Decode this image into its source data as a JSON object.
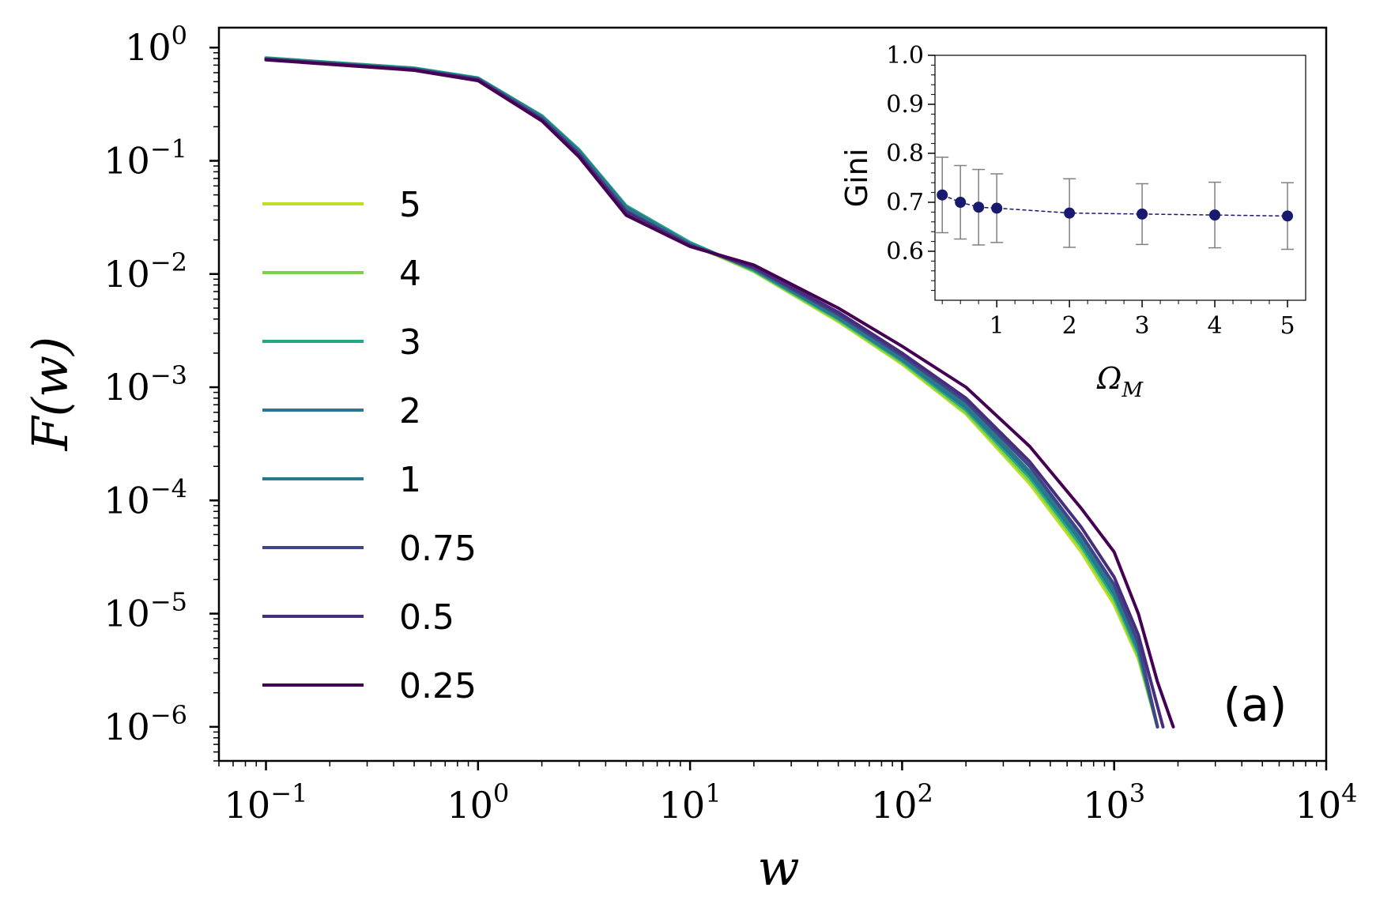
{
  "chart_data": [
    {
      "type": "line",
      "panel_label": "(a)",
      "xlabel": "w",
      "ylabel": "F(w)",
      "xscale": "log",
      "yscale": "log",
      "xlim": [
        0.06,
        10000
      ],
      "ylim": [
        5e-07,
        1.5
      ],
      "x_ticks": [
        {
          "value": 0.1,
          "base": "10",
          "exp": "−1"
        },
        {
          "value": 1,
          "base": "10",
          "exp": "0"
        },
        {
          "value": 10,
          "base": "10",
          "exp": "1"
        },
        {
          "value": 100,
          "base": "10",
          "exp": "2"
        },
        {
          "value": 1000,
          "base": "10",
          "exp": "3"
        },
        {
          "value": 10000,
          "base": "10",
          "exp": "4"
        }
      ],
      "y_ticks": [
        {
          "value": 1,
          "base": "10",
          "exp": "0"
        },
        {
          "value": 0.1,
          "base": "10",
          "exp": "−1"
        },
        {
          "value": 0.01,
          "base": "10",
          "exp": "−2"
        },
        {
          "value": 0.001,
          "base": "10",
          "exp": "−3"
        },
        {
          "value": 0.0001,
          "base": "10",
          "exp": "−4"
        },
        {
          "value": 1e-05,
          "base": "10",
          "exp": "−5"
        },
        {
          "value": 1e-06,
          "base": "10",
          "exp": "−6"
        }
      ],
      "legend_position": "left",
      "series": [
        {
          "name": "5",
          "color": "#bddf26",
          "points": [
            [
              0.1,
              0.8
            ],
            [
              0.5,
              0.65
            ],
            [
              1,
              0.53
            ],
            [
              2,
              0.245
            ],
            [
              3,
              0.12
            ],
            [
              5,
              0.038
            ],
            [
              10,
              0.0185
            ],
            [
              20,
              0.0105
            ],
            [
              50,
              0.0038
            ],
            [
              100,
              0.0016
            ],
            [
              200,
              0.00058
            ],
            [
              400,
              0.00014
            ],
            [
              700,
              3.5e-05
            ],
            [
              1000,
              1.2e-05
            ],
            [
              1300,
              4e-06
            ],
            [
              1600,
              1e-06
            ]
          ]
        },
        {
          "name": "4",
          "color": "#7ad151",
          "points": [
            [
              0.1,
              0.81
            ],
            [
              0.5,
              0.66
            ],
            [
              1,
              0.535
            ],
            [
              2,
              0.25
            ],
            [
              3,
              0.123
            ],
            [
              5,
              0.039
            ],
            [
              10,
              0.0187
            ],
            [
              20,
              0.0106
            ],
            [
              50,
              0.0039
            ],
            [
              100,
              0.00165
            ],
            [
              200,
              0.0006
            ],
            [
              400,
              0.00015
            ],
            [
              700,
              3.8e-05
            ],
            [
              1000,
              1.3e-05
            ],
            [
              1300,
              4.2e-06
            ],
            [
              1600,
              1e-06
            ]
          ]
        },
        {
          "name": "3",
          "color": "#22a884",
          "points": [
            [
              0.1,
              0.81
            ],
            [
              0.5,
              0.66
            ],
            [
              1,
              0.54
            ],
            [
              2,
              0.25
            ],
            [
              3,
              0.125
            ],
            [
              5,
              0.04
            ],
            [
              10,
              0.019
            ],
            [
              20,
              0.0108
            ],
            [
              50,
              0.004
            ],
            [
              100,
              0.0017
            ],
            [
              200,
              0.00063
            ],
            [
              400,
              0.00016
            ],
            [
              700,
              4e-05
            ],
            [
              1000,
              1.4e-05
            ],
            [
              1300,
              4.5e-06
            ],
            [
              1600,
              1e-06
            ]
          ]
        },
        {
          "name": "2",
          "color": "#2a788e",
          "points": [
            [
              0.1,
              0.8
            ],
            [
              0.5,
              0.65
            ],
            [
              1,
              0.535
            ],
            [
              2,
              0.245
            ],
            [
              3,
              0.122
            ],
            [
              5,
              0.039
            ],
            [
              10,
              0.0185
            ],
            [
              20,
              0.011
            ],
            [
              50,
              0.0041
            ],
            [
              100,
              0.00175
            ],
            [
              200,
              0.00066
            ],
            [
              400,
              0.00017
            ],
            [
              700,
              4.3e-05
            ],
            [
              1000,
              1.5e-05
            ],
            [
              1300,
              4.8e-06
            ],
            [
              1600,
              1e-06
            ]
          ]
        },
        {
          "name": "1",
          "color": "#2a788e",
          "points": [
            [
              0.1,
              0.8
            ],
            [
              0.5,
              0.65
            ],
            [
              1,
              0.53
            ],
            [
              2,
              0.24
            ],
            [
              3,
              0.12
            ],
            [
              5,
              0.038
            ],
            [
              10,
              0.0183
            ],
            [
              20,
              0.0112
            ],
            [
              50,
              0.0042
            ],
            [
              100,
              0.0018
            ],
            [
              200,
              0.0007
            ],
            [
              400,
              0.00018
            ],
            [
              700,
              4.6e-05
            ],
            [
              1000,
              1.6e-05
            ],
            [
              1300,
              5e-06
            ],
            [
              1600,
              1e-06
            ]
          ]
        },
        {
          "name": "0.75",
          "color": "#414487",
          "points": [
            [
              0.1,
              0.79
            ],
            [
              0.5,
              0.64
            ],
            [
              1,
              0.525
            ],
            [
              2,
              0.235
            ],
            [
              3,
              0.115
            ],
            [
              5,
              0.036
            ],
            [
              10,
              0.018
            ],
            [
              20,
              0.0113
            ],
            [
              50,
              0.0044
            ],
            [
              100,
              0.0019
            ],
            [
              200,
              0.00075
            ],
            [
              400,
              0.0002
            ],
            [
              700,
              5e-05
            ],
            [
              1000,
              1.8e-05
            ],
            [
              1300,
              5.5e-06
            ],
            [
              1600,
              1e-06
            ]
          ]
        },
        {
          "name": "0.5",
          "color": "#472d7b",
          "points": [
            [
              0.1,
              0.79
            ],
            [
              0.5,
              0.64
            ],
            [
              1,
              0.52
            ],
            [
              2,
              0.23
            ],
            [
              3,
              0.112
            ],
            [
              5,
              0.035
            ],
            [
              10,
              0.0178
            ],
            [
              20,
              0.0115
            ],
            [
              50,
              0.0046
            ],
            [
              100,
              0.002
            ],
            [
              200,
              0.0008
            ],
            [
              400,
              0.00022
            ],
            [
              700,
              5.8e-05
            ],
            [
              1000,
              2.1e-05
            ],
            [
              1300,
              6.5e-06
            ],
            [
              1700,
              1e-06
            ]
          ]
        },
        {
          "name": "0.25",
          "color": "#440154",
          "points": [
            [
              0.1,
              0.78
            ],
            [
              0.5,
              0.63
            ],
            [
              1,
              0.51
            ],
            [
              2,
              0.225
            ],
            [
              3,
              0.108
            ],
            [
              5,
              0.033
            ],
            [
              10,
              0.0175
            ],
            [
              20,
              0.012
            ],
            [
              50,
              0.005
            ],
            [
              100,
              0.0023
            ],
            [
              200,
              0.001
            ],
            [
              400,
              0.0003
            ],
            [
              700,
              8.5e-05
            ],
            [
              1000,
              3.5e-05
            ],
            [
              1300,
              1e-05
            ],
            [
              1600,
              2.5e-06
            ],
            [
              1900,
              1e-06
            ]
          ]
        }
      ]
    },
    {
      "type": "scatter",
      "title": "",
      "xlabel": "Ω",
      "xlabel_sub": "M",
      "ylabel": "Gini",
      "xlim": [
        0.15,
        5.25
      ],
      "ylim": [
        0.5,
        1.0
      ],
      "x_ticks": [
        "1",
        "2",
        "3",
        "4",
        "5"
      ],
      "y_ticks": [
        "0.6",
        "0.7",
        "0.8",
        "0.9",
        "1.0"
      ],
      "point_color": "#191970",
      "errorbar_color": "#808080",
      "points": [
        {
          "x": 0.25,
          "y": 0.715,
          "err": 0.077
        },
        {
          "x": 0.5,
          "y": 0.7,
          "err": 0.075
        },
        {
          "x": 0.75,
          "y": 0.69,
          "err": 0.077
        },
        {
          "x": 1,
          "y": 0.688,
          "err": 0.07
        },
        {
          "x": 2,
          "y": 0.678,
          "err": 0.07
        },
        {
          "x": 3,
          "y": 0.676,
          "err": 0.062
        },
        {
          "x": 4,
          "y": 0.674,
          "err": 0.067
        },
        {
          "x": 5,
          "y": 0.672,
          "err": 0.068
        }
      ]
    }
  ]
}
